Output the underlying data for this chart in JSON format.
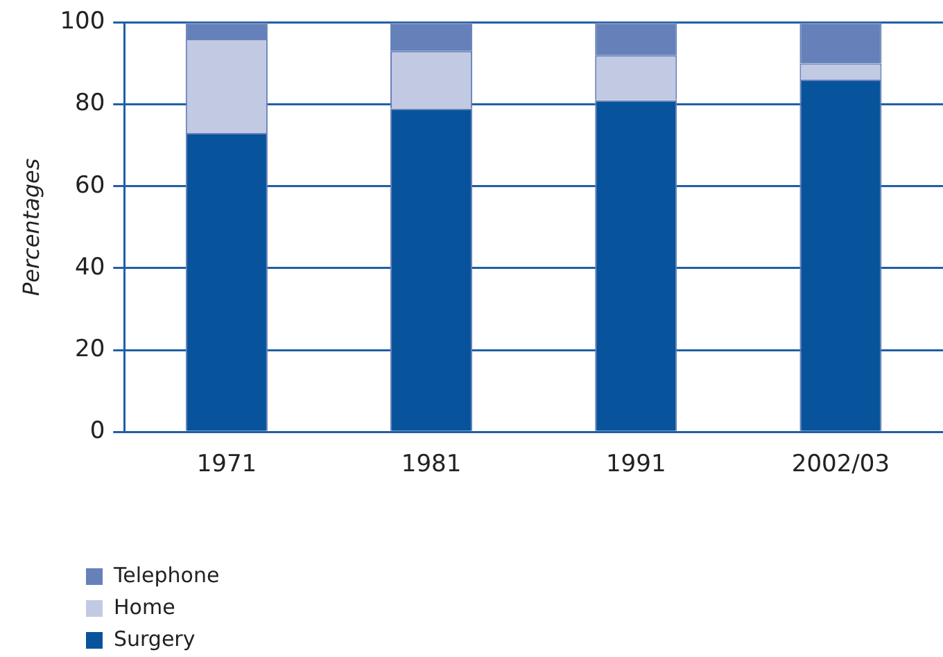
{
  "chart_data": {
    "type": "bar",
    "stacked": true,
    "ylabel": "Percentages",
    "categories": [
      "1971",
      "1981",
      "1991",
      "2002/03"
    ],
    "series": [
      {
        "name": "Surgery",
        "color": "#07539c",
        "values": [
          73,
          79,
          81,
          86
        ]
      },
      {
        "name": "Home",
        "color": "#c2c9e3",
        "values": [
          23,
          14,
          11,
          4
        ]
      },
      {
        "name": "Telephone",
        "color": "#6680b9",
        "values": [
          4,
          7,
          8,
          10
        ]
      }
    ],
    "ylim": [
      0,
      100
    ],
    "yticks": [
      0,
      20,
      40,
      60,
      80,
      100
    ],
    "grid": "y",
    "legend": "bottom left"
  }
}
